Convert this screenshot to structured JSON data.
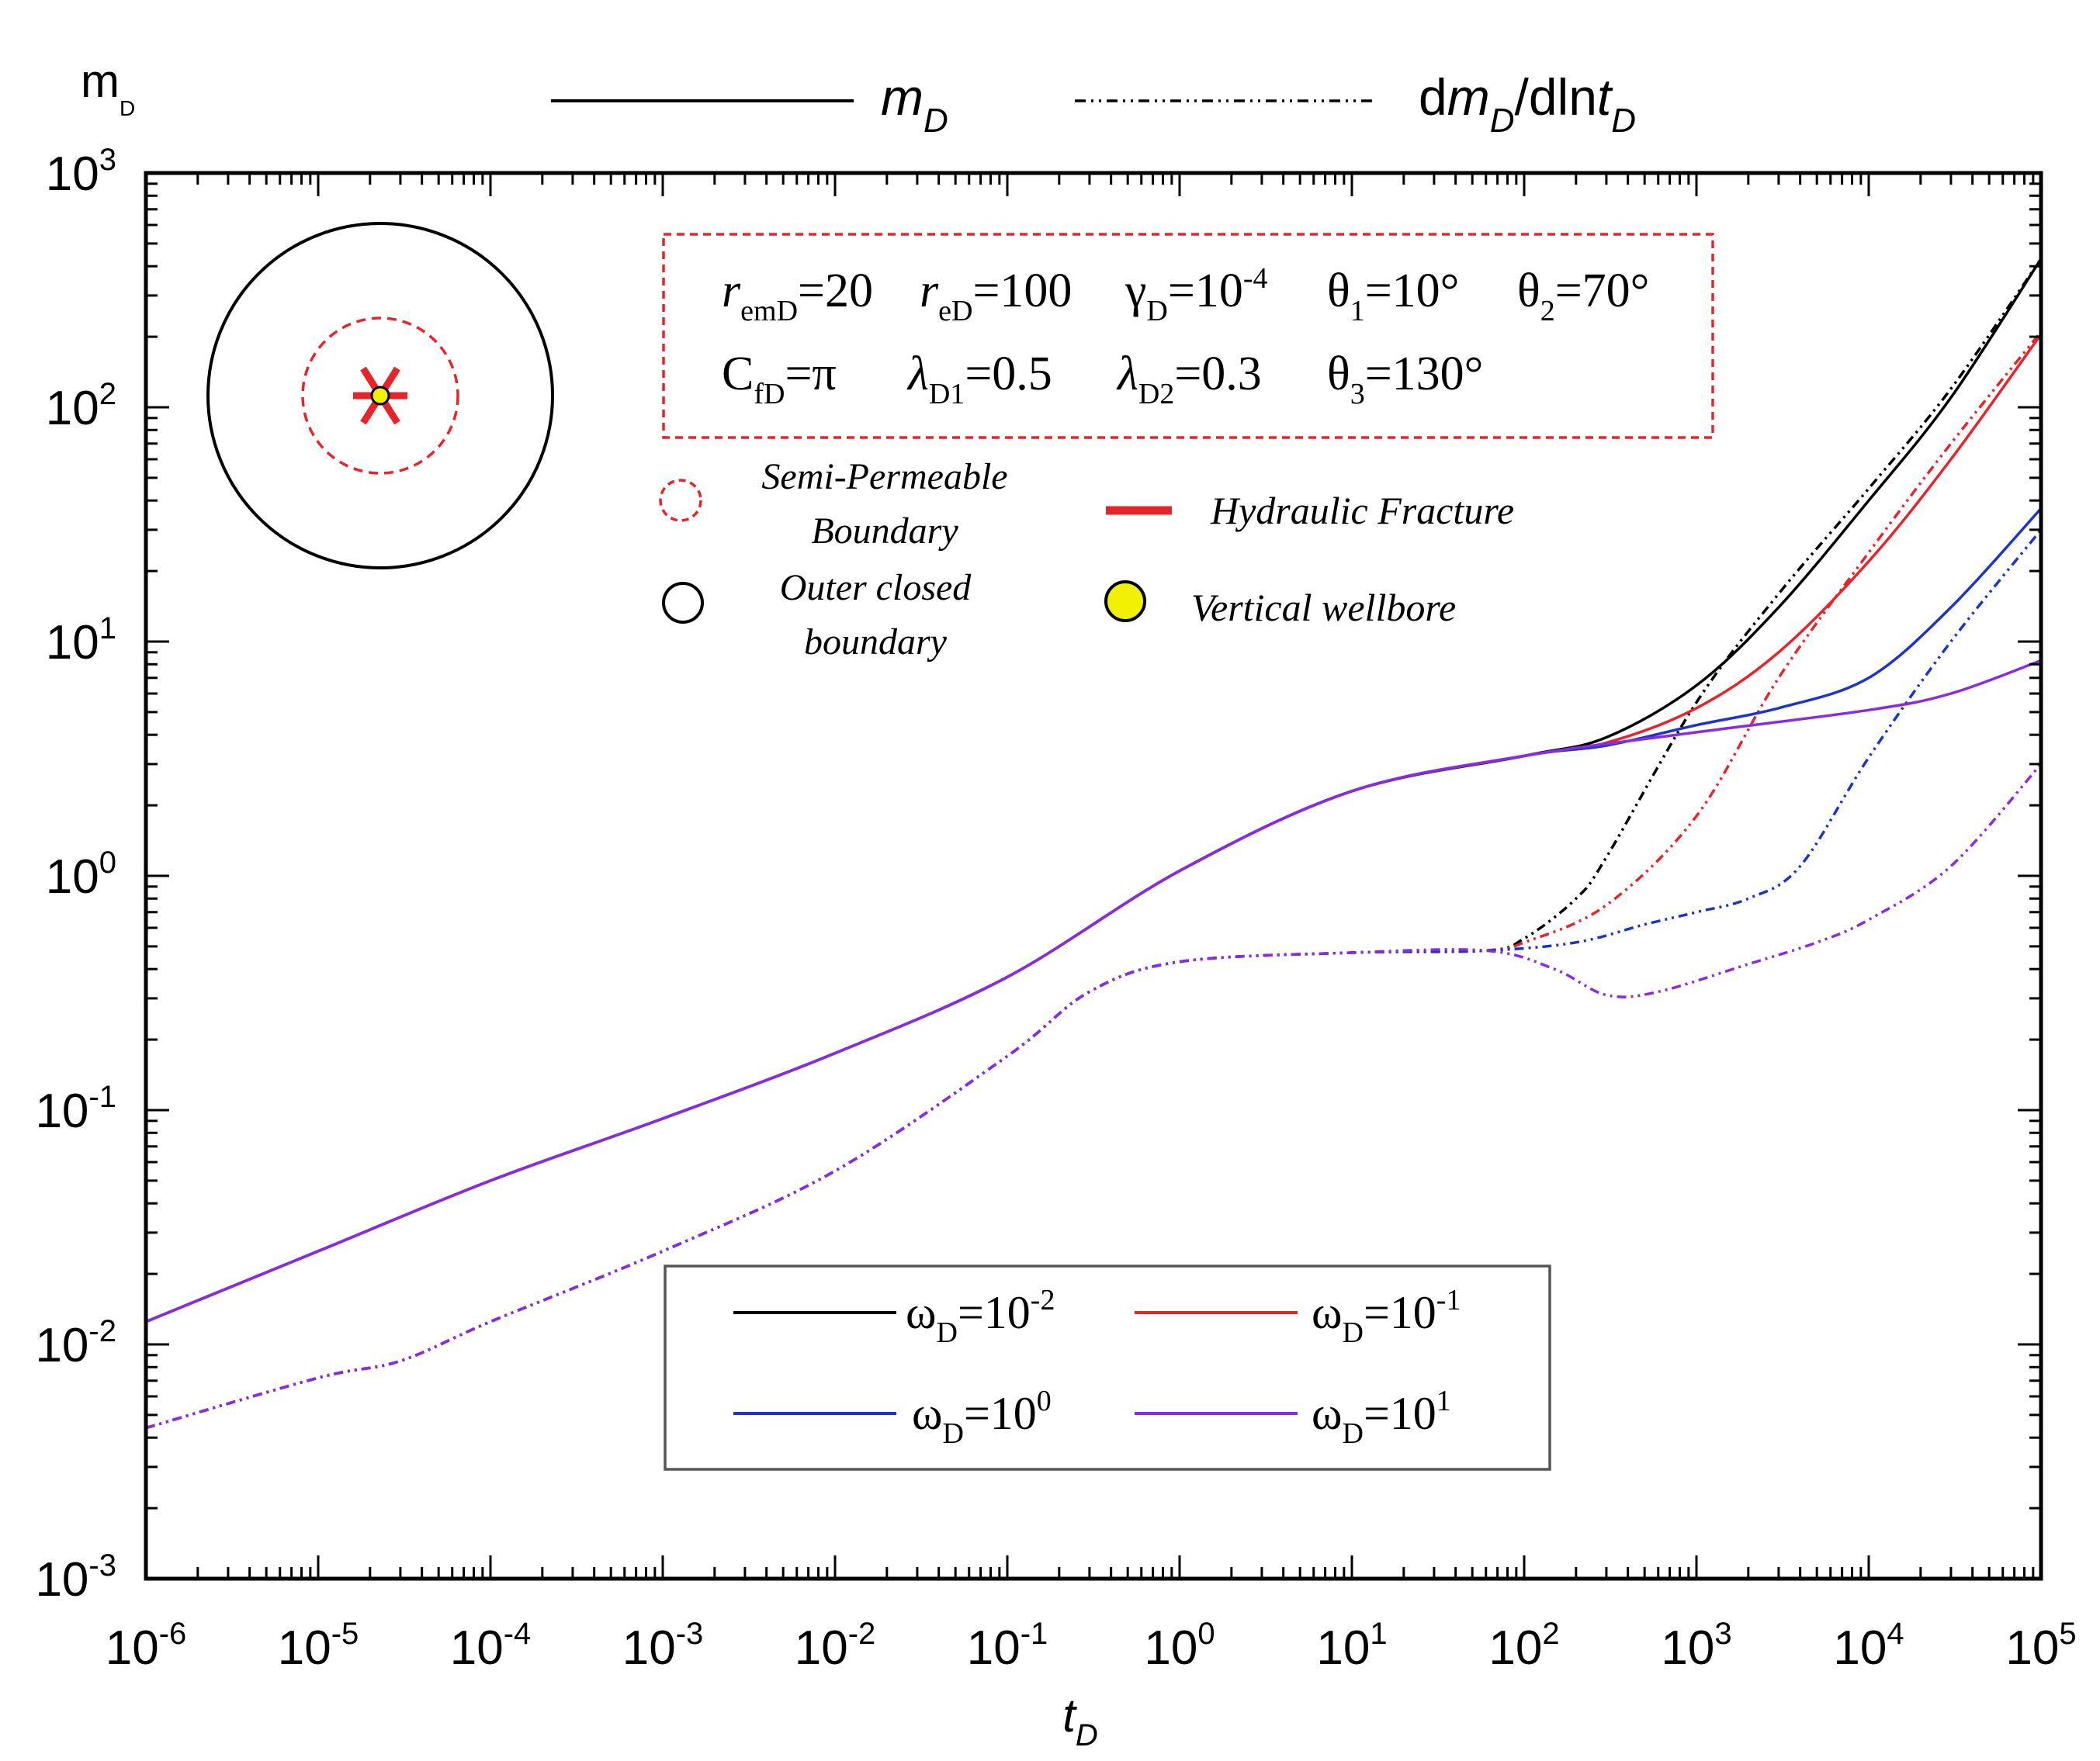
{
  "chart_data": {
    "type": "line",
    "x_scale": "log",
    "y_scale": "log",
    "xlim": [
      1e-06,
      100000
    ],
    "ylim": [
      0.001,
      1000
    ],
    "xlabel": "t",
    "xlabel_sub": "D",
    "ylabel": "m",
    "ylabel_sub": "D",
    "x_ticks": [
      {
        "base": "10",
        "exp": "-6",
        "value": 1e-06
      },
      {
        "base": "10",
        "exp": "-5",
        "value": 1e-05
      },
      {
        "base": "10",
        "exp": "-4",
        "value": 0.0001
      },
      {
        "base": "10",
        "exp": "-3",
        "value": 0.001
      },
      {
        "base": "10",
        "exp": "-2",
        "value": 0.01
      },
      {
        "base": "10",
        "exp": "-1",
        "value": 0.1
      },
      {
        "base": "10",
        "exp": "0",
        "value": 1
      },
      {
        "base": "10",
        "exp": "1",
        "value": 10
      },
      {
        "base": "10",
        "exp": "2",
        "value": 100
      },
      {
        "base": "10",
        "exp": "3",
        "value": 1000
      },
      {
        "base": "10",
        "exp": "4",
        "value": 10000
      },
      {
        "base": "10",
        "exp": "5",
        "value": 100000
      }
    ],
    "y_ticks": [
      {
        "base": "10",
        "exp": "-3",
        "value": 0.001
      },
      {
        "base": "10",
        "exp": "-2",
        "value": 0.01
      },
      {
        "base": "10",
        "exp": "-1",
        "value": 0.1
      },
      {
        "base": "10",
        "exp": "0",
        "value": 1
      },
      {
        "base": "10",
        "exp": "1",
        "value": 10
      },
      {
        "base": "10",
        "exp": "2",
        "value": 100
      },
      {
        "base": "10",
        "exp": "3",
        "value": 1000
      }
    ],
    "style_legend": {
      "solid": {
        "main": "m",
        "sub": "D"
      },
      "dashdot": {
        "prefix": "d",
        "main": "m",
        "sub": "D",
        "mid": "/dln",
        "main2": "t",
        "sub2": "D"
      }
    },
    "series": [
      {
        "name": "wD=1e-2",
        "color": "#000000",
        "legend": {
          "sym": "ω",
          "sub": "D",
          "eq": "=10",
          "exp": "-2"
        },
        "m": [
          [
            1e-06,
            0.0125
          ],
          [
            1e-05,
            0.025
          ],
          [
            0.0001,
            0.05
          ],
          [
            0.001,
            0.092
          ],
          [
            0.01,
            0.175
          ],
          [
            0.1,
            0.37
          ],
          [
            1,
            1.05
          ],
          [
            10,
            2.3
          ],
          [
            100,
            3.25
          ],
          [
            300,
            3.9
          ],
          [
            1000,
            6.5
          ],
          [
            3000,
            14
          ],
          [
            10000,
            40
          ],
          [
            30000,
            110
          ],
          [
            100000,
            430
          ]
        ],
        "d": [
          [
            1e-06,
            0.0044
          ],
          [
            1e-05,
            0.0072
          ],
          [
            3e-05,
            0.0085
          ],
          [
            0.0001,
            0.0125
          ],
          [
            0.001,
            0.025
          ],
          [
            0.01,
            0.055
          ],
          [
            0.1,
            0.17
          ],
          [
            0.3,
            0.32
          ],
          [
            1,
            0.43
          ],
          [
            10,
            0.47
          ],
          [
            60,
            0.48
          ],
          [
            100,
            0.54
          ],
          [
            200,
            0.8
          ],
          [
            300,
            1.2
          ],
          [
            1000,
            5.5
          ],
          [
            3000,
            16
          ],
          [
            10000,
            45
          ],
          [
            30000,
            120
          ],
          [
            100000,
            430
          ]
        ]
      },
      {
        "name": "wD=1e-1",
        "color": "#e8242b",
        "legend": {
          "sym": "ω",
          "sub": "D",
          "eq": "=10",
          "exp": "-1"
        },
        "m": [
          [
            1e-06,
            0.0125
          ],
          [
            1e-05,
            0.025
          ],
          [
            0.0001,
            0.05
          ],
          [
            0.001,
            0.092
          ],
          [
            0.01,
            0.175
          ],
          [
            0.1,
            0.37
          ],
          [
            1,
            1.05
          ],
          [
            10,
            2.3
          ],
          [
            100,
            3.25
          ],
          [
            300,
            3.7
          ],
          [
            1000,
            5.2
          ],
          [
            3000,
            9
          ],
          [
            10000,
            22
          ],
          [
            30000,
            60
          ],
          [
            100000,
            205
          ]
        ],
        "d": [
          [
            1e-06,
            0.0044
          ],
          [
            1e-05,
            0.0072
          ],
          [
            3e-05,
            0.0085
          ],
          [
            0.0001,
            0.0125
          ],
          [
            0.001,
            0.025
          ],
          [
            0.01,
            0.055
          ],
          [
            0.1,
            0.17
          ],
          [
            0.3,
            0.32
          ],
          [
            1,
            0.43
          ],
          [
            10,
            0.47
          ],
          [
            60,
            0.48
          ],
          [
            100,
            0.52
          ],
          [
            300,
            0.75
          ],
          [
            1000,
            1.8
          ],
          [
            3000,
            7
          ],
          [
            10000,
            24
          ],
          [
            30000,
            70
          ],
          [
            100000,
            210
          ]
        ]
      },
      {
        "name": "wD=1e0",
        "color": "#1c35c8",
        "legend": {
          "sym": "ω",
          "sub": "D",
          "eq": "=10",
          "exp": "0"
        },
        "m": [
          [
            1e-06,
            0.0125
          ],
          [
            1e-05,
            0.025
          ],
          [
            0.0001,
            0.05
          ],
          [
            0.001,
            0.092
          ],
          [
            0.01,
            0.175
          ],
          [
            0.1,
            0.37
          ],
          [
            1,
            1.05
          ],
          [
            10,
            2.3
          ],
          [
            100,
            3.25
          ],
          [
            300,
            3.6
          ],
          [
            1000,
            4.4
          ],
          [
            3000,
            5.2
          ],
          [
            10000,
            7
          ],
          [
            30000,
            14
          ],
          [
            100000,
            37
          ]
        ],
        "d": [
          [
            1e-06,
            0.0044
          ],
          [
            1e-05,
            0.0072
          ],
          [
            3e-05,
            0.0085
          ],
          [
            0.0001,
            0.0125
          ],
          [
            0.001,
            0.025
          ],
          [
            0.01,
            0.055
          ],
          [
            0.1,
            0.17
          ],
          [
            0.3,
            0.32
          ],
          [
            1,
            0.43
          ],
          [
            10,
            0.47
          ],
          [
            60,
            0.48
          ],
          [
            200,
            0.52
          ],
          [
            500,
            0.62
          ],
          [
            1000,
            0.7
          ],
          [
            2000,
            0.8
          ],
          [
            4000,
            1.1
          ],
          [
            10000,
            3.2
          ],
          [
            30000,
            10
          ],
          [
            100000,
            30
          ]
        ]
      },
      {
        "name": "wD=1e1",
        "color": "#8a2be2",
        "legend": {
          "sym": "ω",
          "sub": "D",
          "eq": "=10",
          "exp": "1"
        },
        "m": [
          [
            1e-06,
            0.0125
          ],
          [
            1e-05,
            0.025
          ],
          [
            0.0001,
            0.05
          ],
          [
            0.001,
            0.092
          ],
          [
            0.01,
            0.175
          ],
          [
            0.1,
            0.37
          ],
          [
            1,
            1.05
          ],
          [
            10,
            2.3
          ],
          [
            100,
            3.25
          ],
          [
            1000,
            4.1
          ],
          [
            10000,
            5.1
          ],
          [
            30000,
            6
          ],
          [
            100000,
            8.3
          ]
        ],
        "d": [
          [
            1e-06,
            0.0044
          ],
          [
            1e-05,
            0.0072
          ],
          [
            3e-05,
            0.0085
          ],
          [
            0.0001,
            0.0125
          ],
          [
            0.001,
            0.025
          ],
          [
            0.01,
            0.055
          ],
          [
            0.1,
            0.17
          ],
          [
            0.3,
            0.32
          ],
          [
            1,
            0.43
          ],
          [
            10,
            0.47
          ],
          [
            60,
            0.48
          ],
          [
            150,
            0.4
          ],
          [
            300,
            0.31
          ],
          [
            600,
            0.32
          ],
          [
            2000,
            0.42
          ],
          [
            5000,
            0.52
          ],
          [
            10000,
            0.65
          ],
          [
            30000,
            1.1
          ],
          [
            100000,
            3
          ]
        ]
      }
    ],
    "params": {
      "line1": [
        {
          "main": "r",
          "sub": "emD",
          "val": "=20",
          "ital": true
        },
        {
          "main": "r",
          "sub": "eD",
          "val": "=100",
          "ital": true
        },
        {
          "main": "γ",
          "sub": "D",
          "val": "=10",
          "exp": "-4"
        },
        {
          "main": "θ",
          "sub": "1",
          "val": "=10°"
        },
        {
          "main": "θ",
          "sub": "2",
          "val": "=70°"
        }
      ],
      "line2": [
        {
          "main": "C",
          "sub": "fD",
          "val": "=π"
        },
        {
          "main": "λ",
          "sub": "D1",
          "val": "=0.5",
          "ital": true
        },
        {
          "main": "λ",
          "sub": "D2",
          "val": "=0.3",
          "ital": true
        },
        {
          "main": "θ",
          "sub": "3",
          "val": "=130°"
        }
      ]
    },
    "inset_legend": {
      "semi_line1": "Semi-Permeable",
      "semi_line2": "Boundary",
      "outer_line1": "Outer closed",
      "outer_line2": "boundary",
      "fracture": "Hydraulic Fracture",
      "wellbore": "Vertical wellbore"
    },
    "colors": {
      "fracture": "#e8242b",
      "semi": "#e8242b",
      "wellbore": "#f0f000",
      "frame": "#000000"
    }
  }
}
